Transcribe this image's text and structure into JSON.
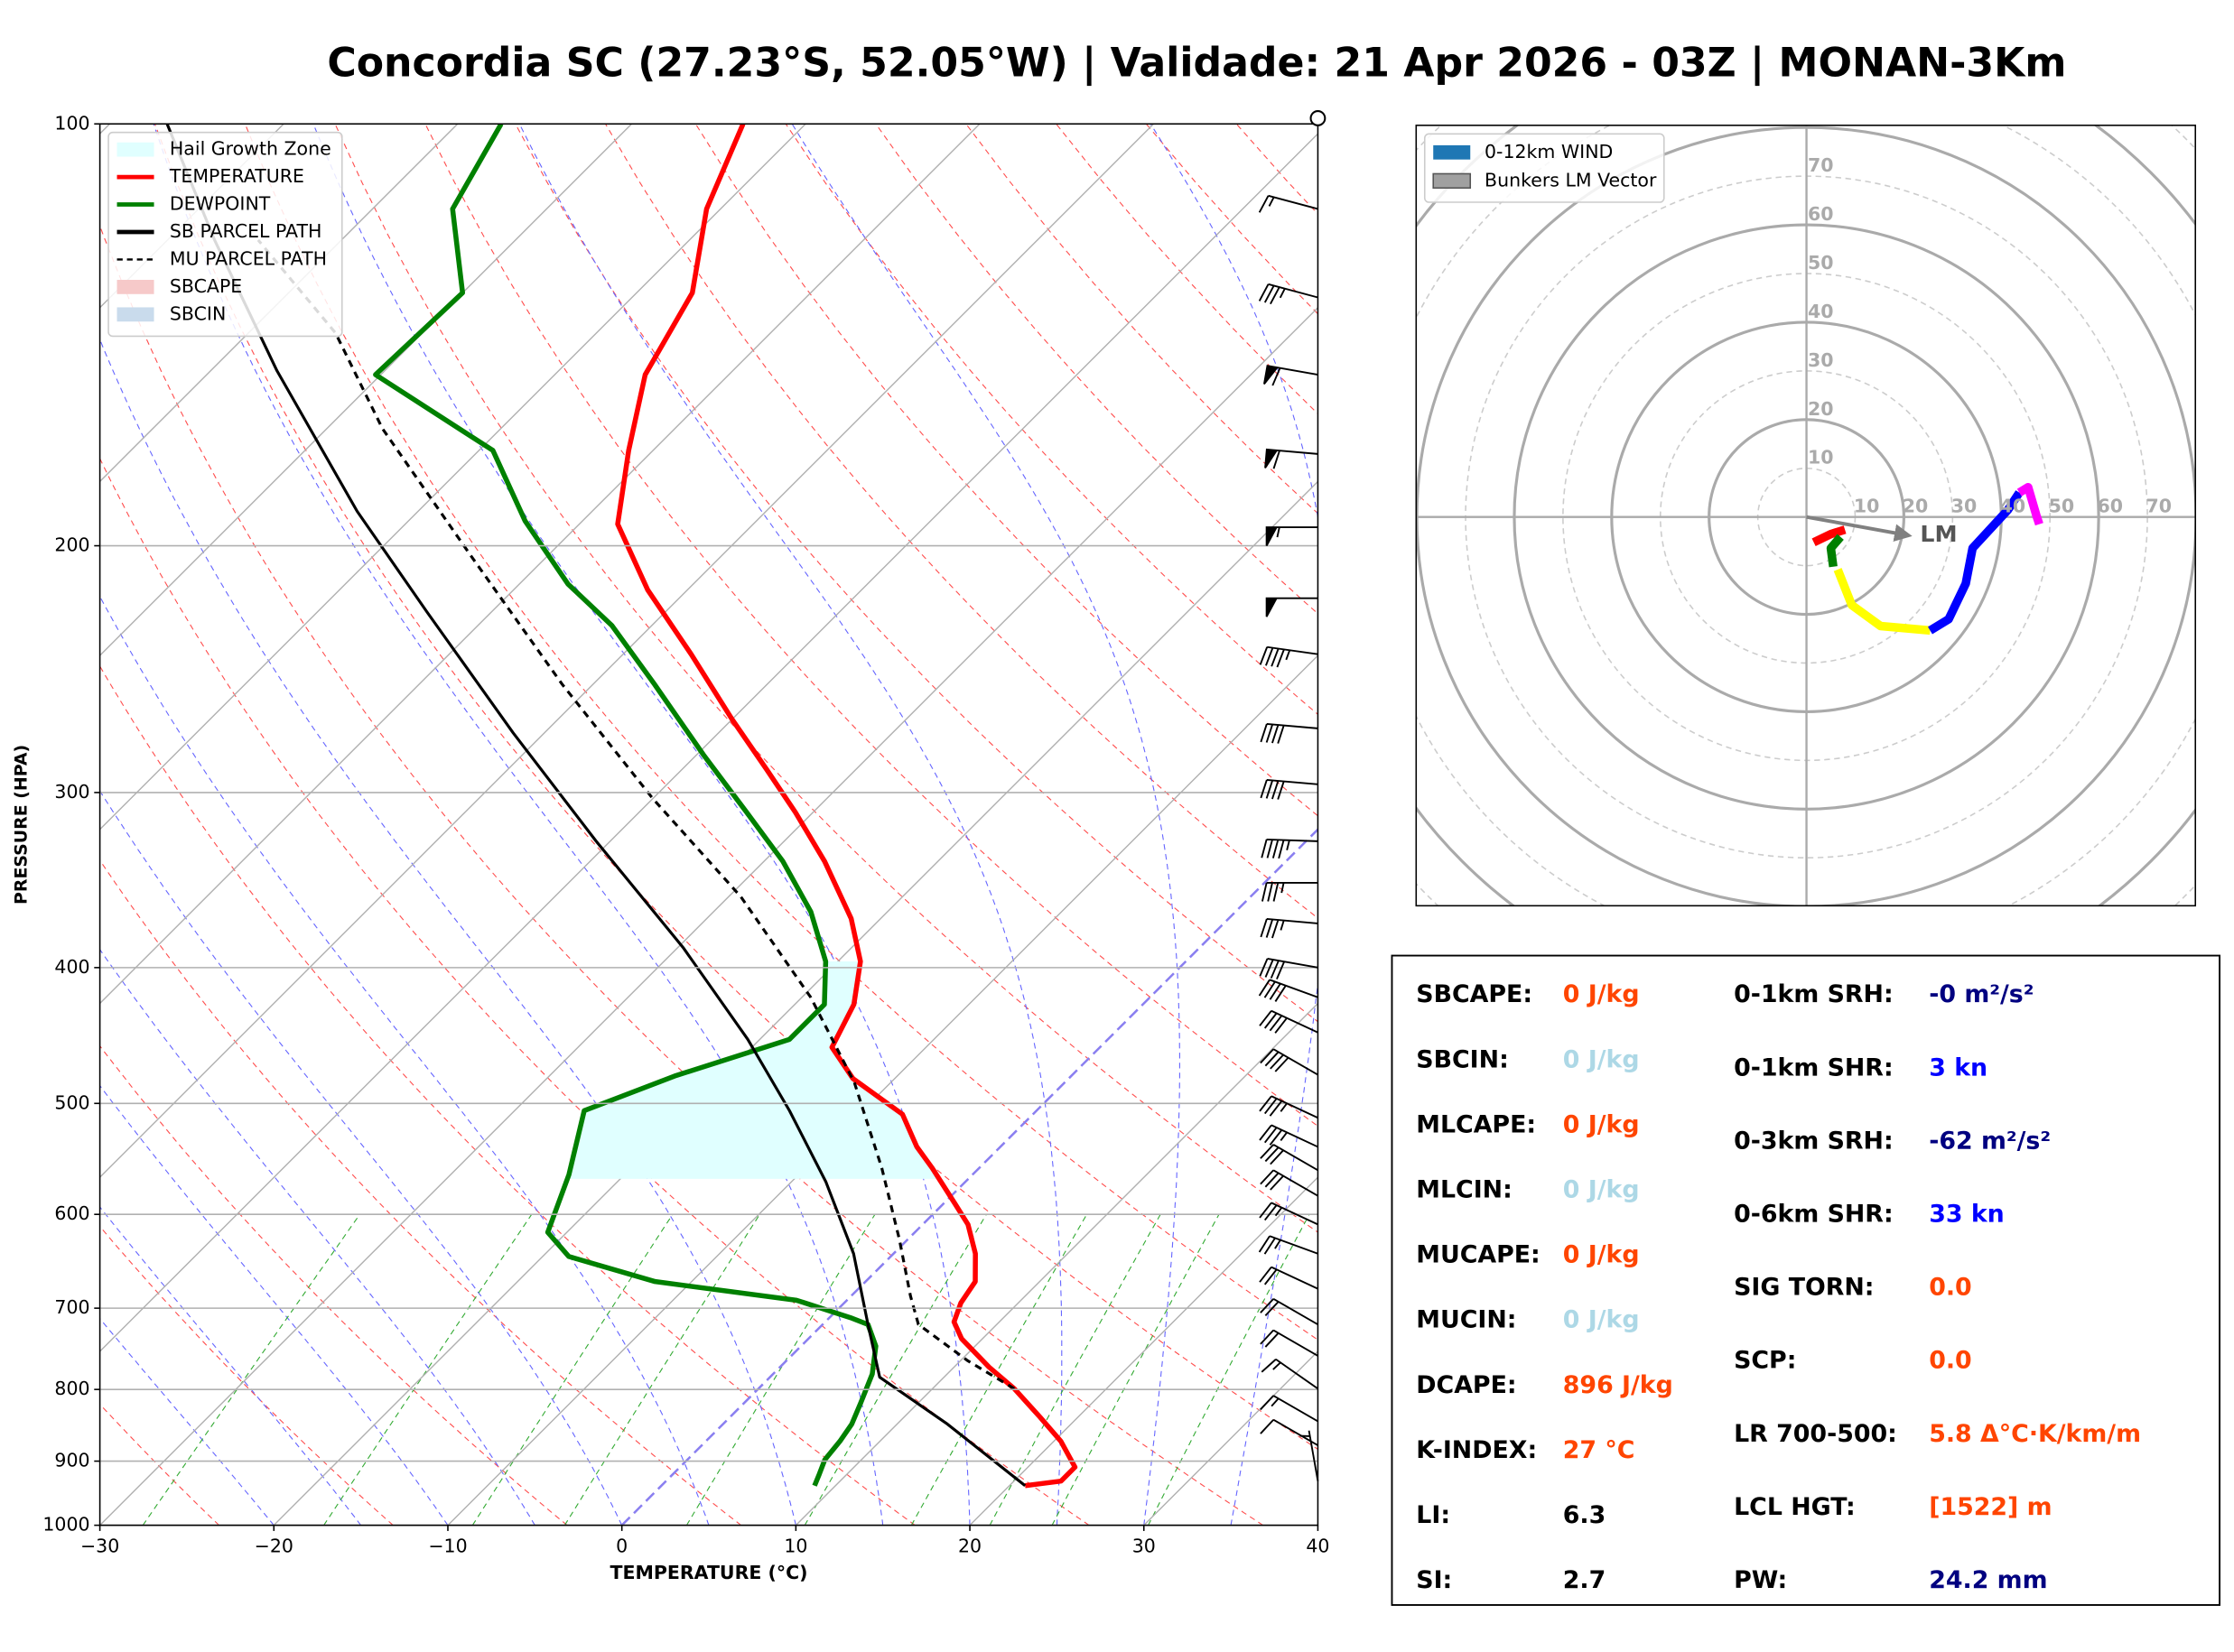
{
  "title": "Concordia SC (27.23°S, 52.05°W) | Validade: 21 Apr 2026 - 03Z | MONAN-3Km",
  "chart_data": [
    {
      "type": "skewt",
      "xlabel": "TEMPERATURE (°C)",
      "ylabel": "PRESSURE (HPA)",
      "xlim": [
        -30,
        40
      ],
      "ylim": [
        1000,
        100
      ],
      "log_y": true,
      "xticks": [
        {
          "value": -30,
          "label": "−30"
        },
        {
          "value": -20,
          "label": "−20"
        },
        {
          "value": -10,
          "label": "−10"
        },
        0,
        10,
        20,
        30,
        40
      ],
      "yticks": [
        100,
        200,
        300,
        400,
        500,
        600,
        700,
        800,
        900,
        1000
      ],
      "grid": true,
      "legend": "upper left",
      "hail_growth_zone": {
        "name": "Hail Growth Zone",
        "color": "#e0ffff",
        "pressure": [
          566,
          396
        ]
      },
      "patches": [
        {
          "name": "SBCAPE",
          "color": "#f6c9c9"
        },
        {
          "name": "SBCIN",
          "color": "#c9dbec"
        }
      ],
      "series": [
        {
          "name": "TEMPERATURE",
          "color": "#ff0000",
          "dashed": false,
          "x": [
            20.9,
            22.7,
            22.7,
            20.4,
            17.8,
            14.7,
            12.0,
            8.8,
            7.4,
            6.7,
            6.3,
            4.7,
            2.6,
            0.6,
            -2.7,
            -4.8,
            -7.5,
            -12.4,
            -15.4,
            -16.6,
            -18.7,
            -21.7,
            -26.5,
            -31.0,
            -35.1,
            -40.0,
            -46.1,
            -52.3,
            -57.8,
            -61.4,
            -64.8,
            -66.8,
            -70.8,
            -73.6
          ],
          "y": [
            937,
            930,
            909,
            871,
            837,
            799,
            771,
            736,
            716,
            694,
            670,
            640,
            610,
            589,
            556,
            537,
            509,
            480,
            456,
            425,
            396,
            369,
            336,
            310,
            289,
            266,
            239,
            215,
            193,
            171,
            151,
            132,
            115,
            100
          ]
        },
        {
          "name": "DEWPOINT",
          "color": "#008000",
          "dashed": false,
          "x": [
            8.8,
            8.4,
            7.9,
            7.7,
            7.4,
            6.7,
            5.7,
            4.3,
            2.6,
            1.2,
            -2.9,
            -12.1,
            -18.5,
            -21.1,
            -23.2,
            -26.0,
            -22.8,
            -18.3,
            -18.3,
            -20.7,
            -24.4,
            -28.9,
            -33.8,
            -39.6,
            -46.5,
            -52.3,
            -57.2,
            -63.3,
            -69.2,
            -80.3,
            -80.0,
            -85.4,
            -87.5
          ],
          "y": [
            937,
            919,
            898,
            871,
            847,
            818,
            780,
            745,
            719,
            711,
            691,
            670,
            643,
            618,
            562,
            506,
            478,
            450,
            425,
            396,
            365,
            336,
            310,
            282,
            251,
            228,
            213,
            192,
            171,
            151,
            132,
            115,
            100
          ]
        },
        {
          "name": "SB PARCEL PATH",
          "color": "#000000",
          "dashed": false,
          "x": [
            20.9,
            12.9,
            6.3,
            2.6,
            -2.3,
            -8.0,
            -14.2,
            -20.7,
            -29.7,
            -40.8,
            -51.8,
            -63.7,
            -73.5,
            -86.2,
            -97.3,
            -106.7
          ],
          "y": [
            937,
            847,
            784,
            719,
            640,
            569,
            506,
            450,
            387,
            325,
            272,
            223,
            189,
            150,
            121,
            100
          ]
        },
        {
          "name": "MU PARCEL PATH",
          "color": "#000000",
          "dashed": true,
          "x": [
            14.7,
            10.4,
            5.5,
            3.4,
            -0.5,
            -5.6,
            -12.1,
            -19.5,
            -29.3,
            -40.0,
            -51.8,
            -64.5,
            -76.8,
            -85.0,
            -94.8
          ],
          "y": [
            799,
            763,
            719,
            686,
            625,
            556,
            483,
            420,
            356,
            303,
            251,
            203,
            165,
            141,
            121
          ]
        }
      ],
      "winds": {
        "pressure": [
          930,
          877,
          843,
          799,
          757,
          719,
          678,
          640,
          610,
          582,
          558,
          537,
          512,
          477,
          445,
          420,
          400,
          372,
          348,
          325,
          296,
          270,
          239,
          218,
          194,
          172,
          151,
          133,
          115
        ],
        "direction": [
          350,
          300,
          300,
          305,
          300,
          300,
          295,
          290,
          295,
          300,
          300,
          295,
          295,
          300,
          295,
          290,
          280,
          275,
          270,
          272,
          275,
          275,
          278,
          270,
          270,
          275,
          280,
          285,
          285
        ],
        "speed": [
          5,
          10,
          15,
          15,
          20,
          20,
          20,
          25,
          25,
          30,
          30,
          35,
          35,
          40,
          40,
          40,
          40,
          35,
          35,
          45,
          40,
          40,
          45,
          50,
          55,
          60,
          60,
          35,
          15
        ]
      }
    },
    {
      "type": "hodograph",
      "rlim": [
        0,
        80
      ],
      "rticks": [
        10,
        20,
        30,
        40,
        50,
        60,
        70
      ],
      "legend": "upper left",
      "legend_entries": [
        {
          "name": "0-12km WIND",
          "color": "#1f77b4"
        },
        {
          "name": "Bunkers LM Vector",
          "color": "#a0a0a0"
        }
      ],
      "series": [
        {
          "color": "#ff0000",
          "u": [
            1.5,
            5,
            7.9
          ],
          "v": [
            -5.2,
            -3.5,
            -2.6
          ]
        },
        {
          "color": "#008000",
          "u": [
            7,
            5,
            5.5
          ],
          "v": [
            -4.1,
            -6.4,
            -10.2
          ]
        },
        {
          "color": "#ffff00",
          "u": [
            6.4,
            9.3,
            15.2,
            25.4
          ],
          "v": [
            -10.8,
            -18.1,
            -22.4,
            -23.3
          ]
        },
        {
          "color": "#0000ff",
          "u": [
            25.4,
            29.2,
            32.7,
            34.1,
            41.4,
            43.7
          ],
          "v": [
            -23.3,
            -21,
            -13.7,
            -6.4,
            1.5,
            5
          ]
        },
        {
          "color": "#ff00ff",
          "u": [
            43.7,
            45.5,
            47.2,
            47.8
          ],
          "v": [
            5,
            6.1,
            0.3,
            -1.5
          ]
        }
      ],
      "lm_vector": {
        "label": "LM",
        "u": 21,
        "v": -3.8,
        "color": "#808080"
      }
    }
  ],
  "stats": {
    "left": [
      {
        "label": "SBCAPE:",
        "value": "0 J/kg",
        "color": "#ff4500"
      },
      {
        "label": "SBCIN:",
        "value": "0 J/kg",
        "color": "#add8e6"
      },
      {
        "label": "MLCAPE:",
        "value": "0 J/kg",
        "color": "#ff4500"
      },
      {
        "label": "MLCIN:",
        "value": "0 J/kg",
        "color": "#add8e6"
      },
      {
        "label": "MUCAPE:",
        "value": "0 J/kg",
        "color": "#ff4500"
      },
      {
        "label": "MUCIN:",
        "value": "0 J/kg",
        "color": "#add8e6"
      },
      {
        "label": "DCAPE:",
        "value": "896 J/kg",
        "color": "#ff4500"
      },
      {
        "label": "K-INDEX:",
        "value": "27 °C",
        "color": "#ff4500"
      },
      {
        "label": "LI:",
        "value": "6.3",
        "color": "#000000"
      },
      {
        "label": "SI:",
        "value": "2.7",
        "color": "#000000"
      }
    ],
    "right": [
      {
        "label": "0-1km SRH:",
        "value": "-0 m²/s²",
        "color": "#000080"
      },
      {
        "label": "0-1km SHR:",
        "value": "3 kn",
        "color": "#0000ff"
      },
      {
        "label": "0-3km SRH:",
        "value": "-62 m²/s²",
        "color": "#000080"
      },
      {
        "label": "0-6km SHR:",
        "value": "33 kn",
        "color": "#0000ff"
      },
      {
        "label": "SIG TORN:",
        "value": "0.0",
        "color": "#ff4500"
      },
      {
        "label": "SCP:",
        "value": "0.0",
        "color": "#ff4500"
      },
      {
        "label": "LR 700-500:",
        "value": "5.8 Δ°C·K/km/m",
        "color": "#ff4500"
      },
      {
        "label": "LCL HGT:",
        "value": "[1522] m",
        "color": "#ff4500"
      },
      {
        "label": "PW:",
        "value": "24.2 mm",
        "color": "#000080"
      }
    ]
  }
}
